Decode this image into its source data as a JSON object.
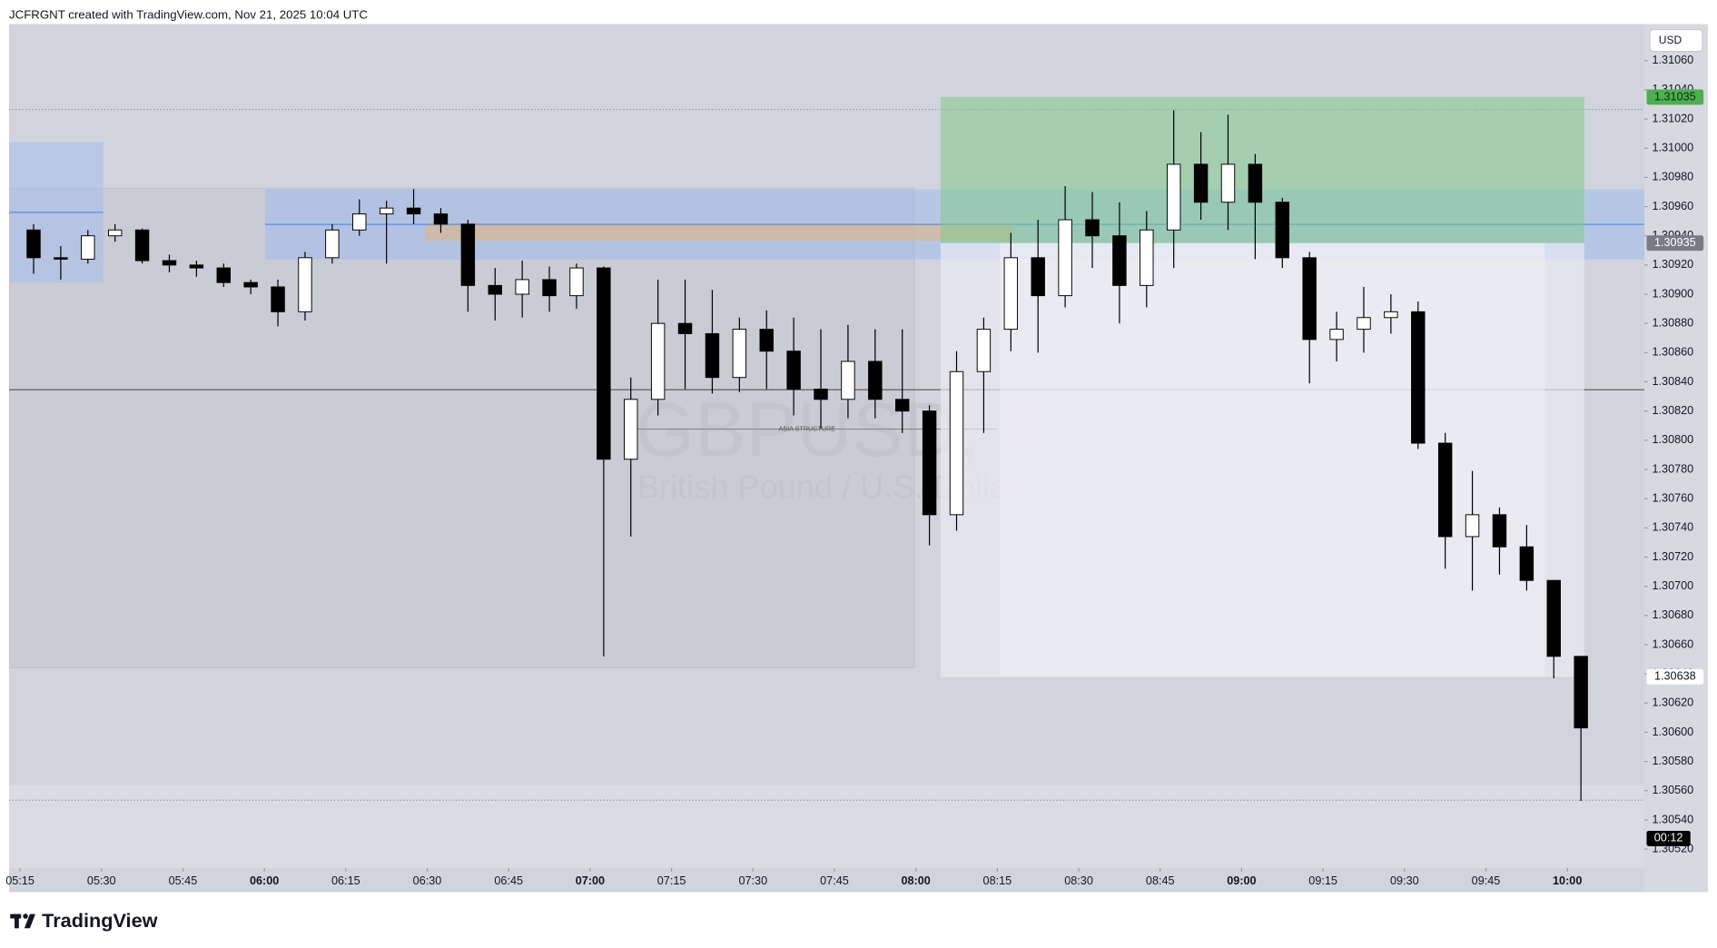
{
  "header": "JCFRGNT created with TradingView.com, Nov 21, 2025 10:04 UTC",
  "logo": "TradingView",
  "chart_data": {
    "type": "candlestick",
    "currency": "USD",
    "watermark": {
      "symbol": "GBPUSD, 1",
      "name": "British Pound / U.S. Dollar"
    },
    "drawing_label": "ASIA STRUCTURE",
    "x": [
      "05:15",
      "05:20",
      "05:25",
      "05:30",
      "05:35",
      "05:40",
      "05:45",
      "05:50",
      "05:55",
      "06:00",
      "06:05",
      "06:10",
      "06:15",
      "06:20",
      "06:25",
      "06:30",
      "06:35",
      "06:40",
      "06:45",
      "06:50",
      "06:55",
      "07:00",
      "07:05",
      "07:10",
      "07:15",
      "07:20",
      "07:25",
      "07:30",
      "07:35",
      "07:40",
      "07:45",
      "07:50",
      "07:55",
      "08:00",
      "08:05",
      "08:10",
      "08:15",
      "08:20",
      "08:25",
      "08:30",
      "08:35",
      "08:40",
      "08:45",
      "08:50",
      "08:55",
      "09:00",
      "09:05",
      "09:10",
      "09:15",
      "09:20",
      "09:25",
      "09:30",
      "09:35",
      "09:40",
      "09:45",
      "09:50",
      "09:55",
      "10:00"
    ],
    "open": [
      1.30944,
      1.30925,
      1.30924,
      1.3094,
      1.30944,
      1.30923,
      1.3092,
      1.30918,
      1.30908,
      1.30905,
      1.30888,
      1.30925,
      1.30944,
      1.30955,
      1.30959,
      1.30955,
      1.30948,
      1.30906,
      1.309,
      1.3091,
      1.30899,
      1.30918,
      1.30787,
      1.30828,
      1.3088,
      1.30873,
      1.30843,
      1.30876,
      1.30861,
      1.30835,
      1.30828,
      1.30854,
      1.30828,
      1.3082,
      1.30749,
      1.30847,
      1.30876,
      1.30925,
      1.30899,
      1.30951,
      1.3094,
      1.30906,
      1.30944,
      1.30989,
      1.30963,
      1.30989,
      1.30963,
      1.30925,
      1.30869,
      1.30876,
      1.30884,
      1.30888,
      1.30798,
      1.30734,
      1.30749,
      1.30727,
      1.30704,
      1.30652
    ],
    "high": [
      1.30948,
      1.30933,
      1.30944,
      1.30948,
      1.30945,
      1.30927,
      1.30923,
      1.30921,
      1.3091,
      1.3091,
      1.30929,
      1.30948,
      1.30965,
      1.30964,
      1.30972,
      1.30959,
      1.30951,
      1.30918,
      1.30923,
      1.30919,
      1.30921,
      1.30919,
      1.30843,
      1.3091,
      1.3091,
      1.30903,
      1.30884,
      1.30889,
      1.30884,
      1.30876,
      1.30879,
      1.30876,
      1.30876,
      1.30824,
      1.30861,
      1.30884,
      1.30942,
      1.30951,
      1.30974,
      1.3097,
      1.30963,
      1.30957,
      1.31026,
      1.31011,
      1.31023,
      1.30996,
      1.30966,
      1.30929,
      1.30888,
      1.30905,
      1.309,
      1.30895,
      1.30805,
      1.30779,
      1.30754,
      1.30742,
      1.30704,
      1.30652
    ],
    "low": [
      1.30914,
      1.3091,
      1.30921,
      1.30936,
      1.30921,
      1.30915,
      1.30912,
      1.30905,
      1.309,
      1.30878,
      1.30882,
      1.30921,
      1.3094,
      1.30921,
      1.30948,
      1.30942,
      1.30888,
      1.30882,
      1.30884,
      1.30888,
      1.3089,
      1.30652,
      1.30734,
      1.30817,
      1.30835,
      1.30832,
      1.30833,
      1.30835,
      1.30817,
      1.30808,
      1.30815,
      1.30815,
      1.30805,
      1.30728,
      1.30738,
      1.30805,
      1.30861,
      1.3086,
      1.30891,
      1.30918,
      1.3088,
      1.30891,
      1.30918,
      1.30951,
      1.30944,
      1.30924,
      1.30918,
      1.30839,
      1.30854,
      1.3086,
      1.30873,
      1.30794,
      1.30712,
      1.30697,
      1.30708,
      1.30697,
      1.30637,
      1.30553
    ],
    "close": [
      1.30925,
      1.30924,
      1.3094,
      1.30944,
      1.30923,
      1.3092,
      1.30918,
      1.30908,
      1.30905,
      1.30888,
      1.30925,
      1.30944,
      1.30955,
      1.30959,
      1.30955,
      1.30948,
      1.30906,
      1.309,
      1.3091,
      1.30899,
      1.30918,
      1.30787,
      1.30828,
      1.3088,
      1.30873,
      1.30843,
      1.30876,
      1.30861,
      1.30835,
      1.30828,
      1.30854,
      1.30828,
      1.3082,
      1.30749,
      1.30847,
      1.30876,
      1.30925,
      1.30899,
      1.30951,
      1.3094,
      1.30906,
      1.30944,
      1.30989,
      1.30963,
      1.30989,
      1.30963,
      1.30925,
      1.30869,
      1.30876,
      1.30884,
      1.30888,
      1.30798,
      1.30734,
      1.30749,
      1.30727,
      1.30704,
      1.30652,
      1.30603
    ],
    "up_color": "#ffffff",
    "down_color": "#000000",
    "wick_color": "#000000",
    "xticks": [
      "05:15",
      "05:30",
      "05:45",
      "06:00",
      "06:15",
      "06:30",
      "06:45",
      "07:00",
      "07:15",
      "07:30",
      "07:45",
      "08:00",
      "08:15",
      "08:30",
      "08:45",
      "09:00",
      "09:15",
      "09:30",
      "09:45",
      "10:00"
    ],
    "ylim": [
      1.30507,
      1.31085
    ],
    "yticks": [
      {
        "value": 1.3052,
        "label": "1.30520"
      },
      {
        "value": 1.3054,
        "label": "1.30540"
      },
      {
        "value": 1.3056,
        "label": "1.30560"
      },
      {
        "value": 1.3058,
        "label": "1.30580"
      },
      {
        "value": 1.306,
        "label": "1.30600"
      },
      {
        "value": 1.3062,
        "label": "1.30620"
      },
      {
        "value": 1.3064,
        "label": "1.30640"
      },
      {
        "value": 1.3066,
        "label": "1.30660"
      },
      {
        "value": 1.3068,
        "label": "1.30680"
      },
      {
        "value": 1.307,
        "label": "1.30700"
      },
      {
        "value": 1.3072,
        "label": "1.30720"
      },
      {
        "value": 1.3074,
        "label": "1.30740"
      },
      {
        "value": 1.3076,
        "label": "1.30760"
      },
      {
        "value": 1.3078,
        "label": "1.30780"
      },
      {
        "value": 1.308,
        "label": "1.30800"
      },
      {
        "value": 1.3082,
        "label": "1.30820"
      },
      {
        "value": 1.3084,
        "label": "1.30840"
      },
      {
        "value": 1.3086,
        "label": "1.30860"
      },
      {
        "value": 1.3088,
        "label": "1.30880"
      },
      {
        "value": 1.309,
        "label": "1.30900"
      },
      {
        "value": 1.3092,
        "label": "1.30920"
      },
      {
        "value": 1.3094,
        "label": "1.30940"
      },
      {
        "value": 1.3096,
        "label": "1.30960"
      },
      {
        "value": 1.3098,
        "label": "1.30980"
      },
      {
        "value": 1.31,
        "label": "1.31000"
      },
      {
        "value": 1.3102,
        "label": "1.31020"
      },
      {
        "value": 1.3104,
        "label": "1.31040"
      },
      {
        "value": 1.3106,
        "label": "1.31060"
      }
    ],
    "position": {
      "target": 1.31035,
      "entry": 1.30935,
      "stop": 1.30638
    },
    "countdown": "00:12"
  }
}
